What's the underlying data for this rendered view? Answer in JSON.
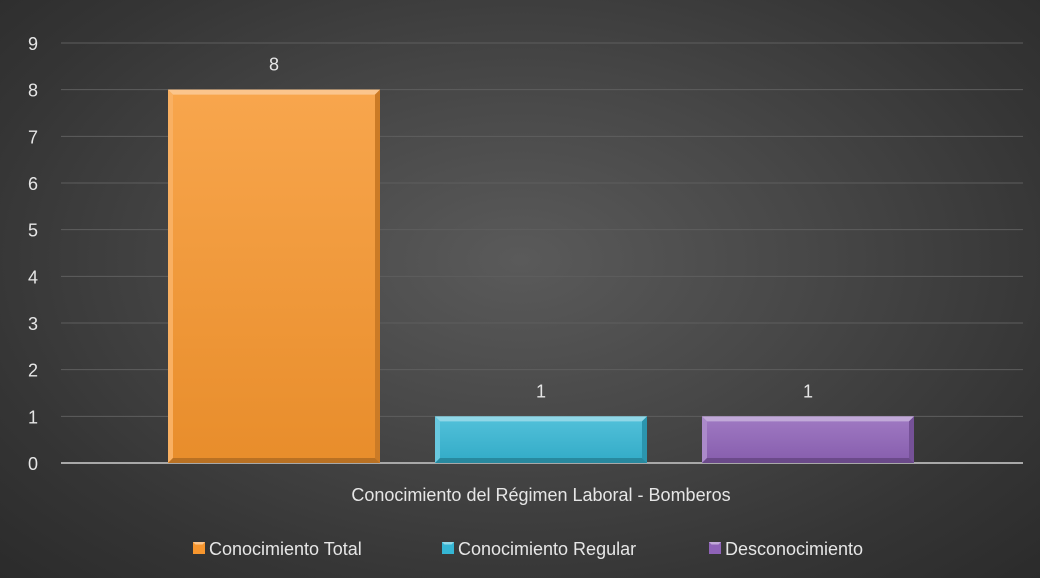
{
  "chart_data": {
    "type": "bar",
    "categories": [
      "Conocimiento del Régimen Laboral - Bomberos"
    ],
    "series": [
      {
        "name": "Conocimiento Total",
        "values": [
          8
        ],
        "color": "#f7962e"
      },
      {
        "name": "Conocimiento Regular",
        "values": [
          1
        ],
        "color": "#35b6d4"
      },
      {
        "name": "Desconocimiento",
        "values": [
          1
        ],
        "color": "#8f63b8"
      }
    ],
    "ylim": [
      0,
      9
    ],
    "yticks": [
      "0",
      "1",
      "2",
      "3",
      "4",
      "5",
      "6",
      "7",
      "8",
      "9"
    ],
    "data_labels": [
      "8",
      "1",
      "1"
    ],
    "grid": true,
    "legend_position": "bottom"
  },
  "colors": {
    "background": "#474747",
    "gridline": "#5e5e5e",
    "axis_text": "#e6e6e6"
  }
}
